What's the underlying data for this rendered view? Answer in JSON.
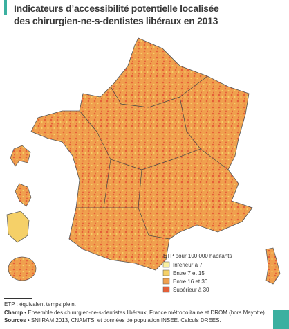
{
  "title_lines": [
    "Indicateurs d’accessibilité potentielle localisée",
    "des chirurgien-ne-s-dentistes libéraux en 2013"
  ],
  "legend": {
    "title": "ETP pour 100 000 habitants",
    "items": [
      {
        "label": "Inférieur à 7",
        "color": "#f7efa0"
      },
      {
        "label": "Entre 7 et 15",
        "color": "#f5d068"
      },
      {
        "label": "Entre 16 et 30",
        "color": "#f0a04e"
      },
      {
        "label": "Supérieur à 30",
        "color": "#e55f38"
      }
    ]
  },
  "notes": {
    "etp": "ETP : équivalent temps plein.",
    "champ_label": "Champ •",
    "champ": "Ensemble des chirurgien-ne-s-dentistes libéraux, France métropolitaine et DROM (hors Mayotte).",
    "sources_label": "Sources •",
    "sources": "SNIIRAM 2013, CNAMTS, et données de population INSEE. Calculs DREES."
  }
}
